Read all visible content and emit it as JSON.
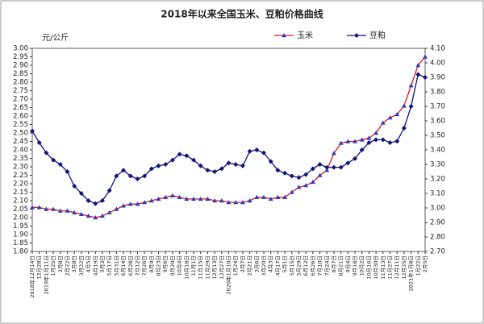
{
  "chart_data": {
    "type": "line",
    "title": "2018年以来全国玉米、豆粕价格曲线",
    "y_label": "元/公斤",
    "categories": [
      "2018年12月14日",
      "12月28日",
      "2019年1月11日",
      "1月25日",
      "2月8日",
      "2月22日",
      "3月8日",
      "3月22日",
      "4月5日",
      "4月19日",
      "5月3日",
      "5月17日",
      "5月31日",
      "6月14日",
      "6月28日",
      "7月12日",
      "7月26日",
      "8月9日",
      "8月23日",
      "9月6日",
      "9月20日",
      "10月4日",
      "10月18日",
      "11月1日",
      "11月15日",
      "11月29日",
      "12月13日",
      "12月27日",
      "2020年1月10日",
      "1月24日",
      "2月7日",
      "2月21日",
      "3月6日",
      "3月20日",
      "4月3日",
      "4月17日",
      "5月1日",
      "5月15日",
      "5月29日",
      "6月12日",
      "6月26日",
      "7月10日",
      "7月24日",
      "8月7日",
      "8月21日",
      "9月4日",
      "9月18日",
      "10月2日",
      "10月16日",
      "10月30日",
      "11月13日",
      "11月27日",
      "12月11日",
      "12月25日",
      "2021年1月8日",
      "1月22日",
      "2月5日"
    ],
    "series": [
      {
        "name": "玉米",
        "color": "#e8141c",
        "marker_color": "#2b3fb8",
        "axis": "y",
        "values": [
          2.06,
          2.06,
          2.05,
          2.05,
          2.04,
          2.04,
          2.03,
          2.02,
          2.01,
          2.0,
          2.01,
          2.03,
          2.05,
          2.07,
          2.08,
          2.08,
          2.09,
          2.1,
          2.11,
          2.12,
          2.13,
          2.12,
          2.11,
          2.11,
          2.11,
          2.11,
          2.1,
          2.1,
          2.09,
          2.09,
          2.09,
          2.1,
          2.12,
          2.12,
          2.11,
          2.12,
          2.12,
          2.15,
          2.18,
          2.19,
          2.21,
          2.25,
          2.28,
          2.38,
          2.44,
          2.45,
          2.45,
          2.46,
          2.47,
          2.5,
          2.56,
          2.59,
          2.61,
          2.66,
          2.78,
          2.9,
          2.95
        ]
      },
      {
        "name": "豆粕",
        "color": "#12127a",
        "marker_color": "#12127a",
        "axis": "y2",
        "values": [
          3.53,
          3.45,
          3.38,
          3.33,
          3.3,
          3.25,
          3.15,
          3.1,
          3.05,
          3.03,
          3.05,
          3.12,
          3.22,
          3.26,
          3.22,
          3.2,
          3.22,
          3.27,
          3.29,
          3.3,
          3.33,
          3.37,
          3.36,
          3.33,
          3.29,
          3.26,
          3.25,
          3.27,
          3.31,
          3.3,
          3.29,
          3.39,
          3.4,
          3.38,
          3.32,
          3.26,
          3.24,
          3.22,
          3.21,
          3.23,
          3.27,
          3.3,
          3.28,
          3.28,
          3.28,
          3.31,
          3.34,
          3.4,
          3.45,
          3.47,
          3.47,
          3.45,
          3.46,
          3.55,
          3.7,
          3.92,
          3.9
        ]
      }
    ],
    "ylim": [
      1.8,
      3.0
    ],
    "yticks": [
      {
        "value": 1.8,
        "label": "1.80"
      },
      {
        "value": 1.85,
        "label": "1.85"
      },
      {
        "value": 1.9,
        "label": "1.90"
      },
      {
        "value": 1.95,
        "label": "1.95"
      },
      {
        "value": 2.0,
        "label": "2.00"
      },
      {
        "value": 2.05,
        "label": "2.05"
      },
      {
        "value": 2.1,
        "label": "2.10"
      },
      {
        "value": 2.15,
        "label": "2.15"
      },
      {
        "value": 2.2,
        "label": "2.20"
      },
      {
        "value": 2.25,
        "label": "2.25"
      },
      {
        "value": 2.3,
        "label": "2.30"
      },
      {
        "value": 2.35,
        "label": "2.35"
      },
      {
        "value": 2.4,
        "label": "2.40"
      },
      {
        "value": 2.45,
        "label": "2.45"
      },
      {
        "value": 2.5,
        "label": "2.50"
      },
      {
        "value": 2.55,
        "label": "2.55"
      },
      {
        "value": 2.6,
        "label": "2.60"
      },
      {
        "value": 2.65,
        "label": "2.65"
      },
      {
        "value": 2.7,
        "label": "2.70"
      },
      {
        "value": 2.75,
        "label": "2.75"
      },
      {
        "value": 2.8,
        "label": "2.80"
      },
      {
        "value": 2.85,
        "label": "2.85"
      },
      {
        "value": 2.9,
        "label": "2.90"
      },
      {
        "value": 2.95,
        "label": "2.95"
      },
      {
        "value": 3.0,
        "label": "3.00"
      }
    ],
    "y2lim": [
      2.7,
      4.1
    ],
    "y2ticks": [
      {
        "value": 2.7,
        "label": "2.70"
      },
      {
        "value": 2.8,
        "label": "2.80"
      },
      {
        "value": 2.9,
        "label": "2.90"
      },
      {
        "value": 3.0,
        "label": "3.00"
      },
      {
        "value": 3.1,
        "label": "3.10"
      },
      {
        "value": 3.2,
        "label": "3.20"
      },
      {
        "value": 3.3,
        "label": "3.30"
      },
      {
        "value": 3.4,
        "label": "3.40"
      },
      {
        "value": 3.5,
        "label": "3.50"
      },
      {
        "value": 3.6,
        "label": "3.60"
      },
      {
        "value": 3.7,
        "label": "3.70"
      },
      {
        "value": 3.8,
        "label": "3.80"
      },
      {
        "value": 3.9,
        "label": "3.90"
      },
      {
        "value": 4.0,
        "label": "4.00"
      },
      {
        "value": 4.1,
        "label": "4.10"
      }
    ],
    "grid": false,
    "legend": "top"
  }
}
